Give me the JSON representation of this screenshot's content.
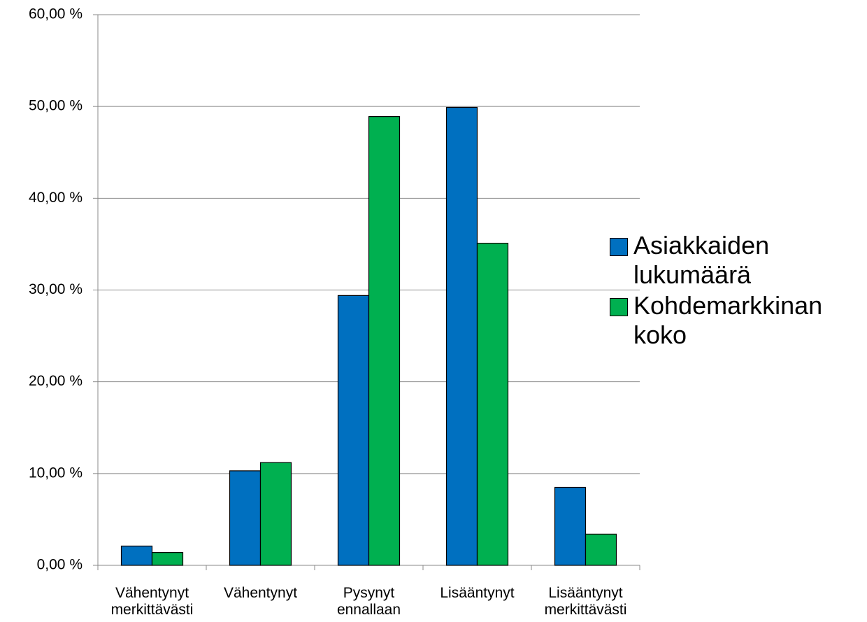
{
  "chart_data": {
    "type": "bar",
    "categories": [
      "Vähentynyt merkittävästi",
      "Vähentynyt",
      "Pysynyt ennallaan",
      "Lisääntynyt",
      "Lisääntynyt merkittävästi"
    ],
    "series": [
      {
        "name": "Asiakkaiden lukumäärä",
        "color": "#0070c0",
        "values": [
          2.1,
          10.3,
          29.4,
          49.9,
          8.5
        ]
      },
      {
        "name": "Kohdemarkkinan koko",
        "color": "#00b050",
        "values": [
          1.4,
          11.2,
          48.9,
          35.1,
          3.4
        ]
      }
    ],
    "ylim": [
      0,
      60
    ],
    "yticks": [
      {
        "value": 0,
        "label": "0,00 %"
      },
      {
        "value": 10,
        "label": "10,00 %"
      },
      {
        "value": 20,
        "label": "20,00 %"
      },
      {
        "value": 30,
        "label": "30,00 %"
      },
      {
        "value": 40,
        "label": "40,00 %"
      },
      {
        "value": 50,
        "label": "50,00 %"
      },
      {
        "value": 60,
        "label": "60,00 %"
      }
    ],
    "grid": true,
    "legend": "right"
  }
}
